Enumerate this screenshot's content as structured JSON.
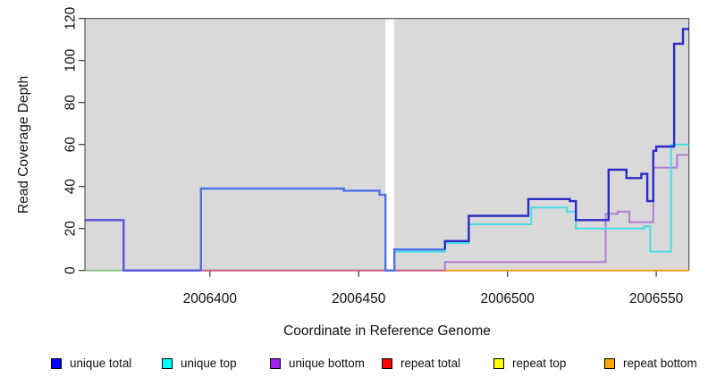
{
  "chart_data": {
    "type": "step-line",
    "title": "",
    "xlabel": "Coordinate in Reference Genome",
    "ylabel": "Read Coverage Depth",
    "xlim": [
      2006358,
      2006561
    ],
    "ylim": [
      0,
      120
    ],
    "grid": false,
    "legend_position": "bottom",
    "plot_bg": "#D9D9D9",
    "border_color": "#3C3C3C",
    "missing_data_band": {
      "from": 2006459,
      "to": 2006462,
      "color": "#FFFFFF"
    },
    "x_ticks": [
      {
        "value": 2006400,
        "label": "2006400"
      },
      {
        "value": 2006450,
        "label": "2006450"
      },
      {
        "value": 2006500,
        "label": "2006500"
      },
      {
        "value": 2006550,
        "label": "2006550"
      }
    ],
    "y_ticks": [
      {
        "value": 0,
        "label": "0"
      },
      {
        "value": 20,
        "label": "20"
      },
      {
        "value": 40,
        "label": "40"
      },
      {
        "value": 60,
        "label": "60"
      },
      {
        "value": 80,
        "label": "80"
      },
      {
        "value": 100,
        "label": "100"
      },
      {
        "value": 120,
        "label": "120"
      }
    ],
    "series": [
      {
        "name": "repeat top",
        "legend_color": "#FFFF00",
        "paths": [
          {
            "color": "#74BE74",
            "points": [
              [
                2006358,
                0
              ]
            ],
            "end": 2006371
          }
        ]
      },
      {
        "name": "unique bottom",
        "legend_color": "#A020F0",
        "paths": [
          {
            "color": "#5A55DC",
            "points": [
              [
                2006358,
                24
              ],
              [
                2006371,
                0
              ]
            ],
            "end": 2006397
          },
          {
            "color": "#B57BD5",
            "points": [
              [
                2006397,
                0
              ]
            ],
            "end": 2006479
          },
          {
            "color": "#B57BD5",
            "points": [
              [
                2006479,
                0
              ],
              [
                2006479,
                4
              ],
              [
                2006533,
                27
              ],
              [
                2006537,
                28
              ],
              [
                2006541,
                23
              ],
              [
                2006549,
                49
              ],
              [
                2006557,
                55
              ]
            ],
            "end": 2006561
          }
        ]
      },
      {
        "name": "repeat total",
        "legend_color": "#FF0000",
        "paths": [
          {
            "color": "#D2526E",
            "points": [
              [
                2006397,
                0
              ]
            ],
            "end": 2006479
          }
        ]
      },
      {
        "name": "repeat bottom",
        "legend_color": "#FFA500",
        "paths": [
          {
            "color": "#FF9D1E",
            "points": [
              [
                2006479,
                0
              ]
            ],
            "end": 2006561
          }
        ]
      },
      {
        "name": "unique top",
        "legend_color": "#00FFFF",
        "paths": [
          {
            "color": "#45DEE4",
            "points": [
              [
                2006462,
                9
              ],
              [
                2006479,
                13
              ],
              [
                2006487,
                22
              ],
              [
                2006508,
                30
              ],
              [
                2006520,
                28
              ],
              [
                2006523,
                20
              ],
              [
                2006546,
                21
              ],
              [
                2006548,
                9
              ],
              [
                2006555,
                60
              ]
            ],
            "end": 2006561
          }
        ]
      },
      {
        "name": "unique total",
        "legend_color": "#0000FF",
        "paths": [
          {
            "color": "#5A55DC",
            "points": [
              [
                2006358,
                24
              ],
              [
                2006371,
                0
              ]
            ],
            "end": 2006397
          },
          {
            "color": "#4A72E8",
            "points": [
              [
                2006397,
                0
              ],
              [
                2006397,
                39
              ],
              [
                2006445,
                38
              ],
              [
                2006457,
                36
              ],
              [
                2006459,
                0
              ],
              [
                2006462,
                10
              ]
            ],
            "end": 2006479
          },
          {
            "color": "#2A2AC8",
            "points": [
              [
                2006479,
                10
              ],
              [
                2006479,
                14
              ],
              [
                2006487,
                26
              ],
              [
                2006507,
                34
              ],
              [
                2006521,
                33
              ],
              [
                2006523,
                24
              ],
              [
                2006534,
                48
              ],
              [
                2006540,
                44
              ],
              [
                2006545,
                46
              ],
              [
                2006547,
                33
              ],
              [
                2006549,
                57
              ],
              [
                2006550,
                59
              ],
              [
                2006556,
                108
              ],
              [
                2006559,
                115
              ]
            ],
            "end": 2006561
          }
        ]
      }
    ]
  },
  "legend": {
    "items": [
      {
        "label": "unique total",
        "color": "#0000FF"
      },
      {
        "label": "unique top",
        "color": "#00FFFF"
      },
      {
        "label": "unique bottom",
        "color": "#A020F0"
      },
      {
        "label": "repeat total",
        "color": "#FF0000"
      },
      {
        "label": "repeat top",
        "color": "#FFFF00"
      },
      {
        "label": "repeat bottom",
        "color": "#FFA500"
      }
    ]
  }
}
